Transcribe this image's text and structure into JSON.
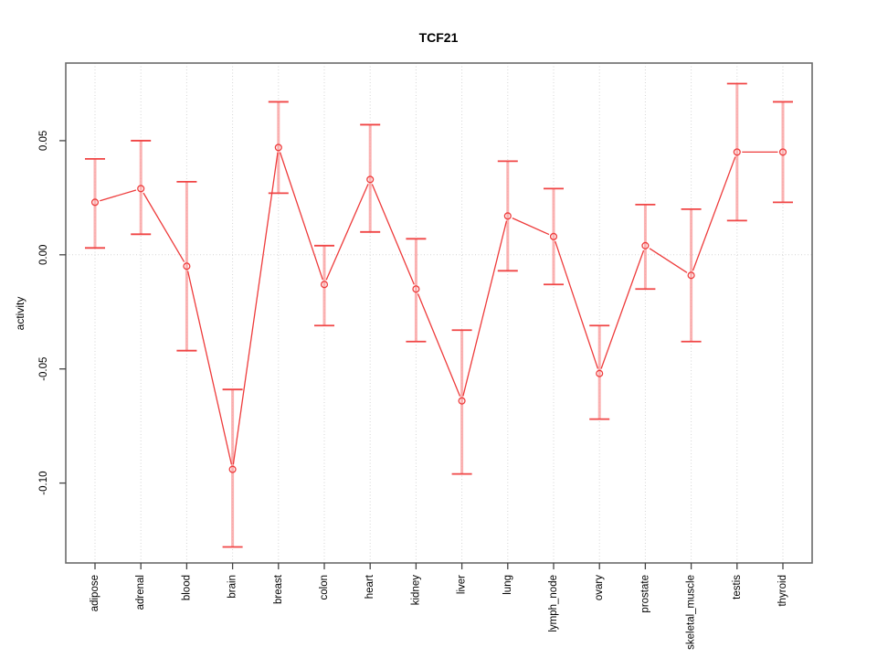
{
  "chart_data": {
    "type": "line",
    "title": "TCF21",
    "xlabel": "",
    "ylabel": "activity",
    "categories": [
      "adipose",
      "adrenal",
      "blood",
      "brain",
      "breast",
      "colon",
      "heart",
      "kidney",
      "liver",
      "lung",
      "lymph_node",
      "ovary",
      "prostate",
      "skeletal_muscle",
      "testis",
      "thyroid"
    ],
    "series": [
      {
        "name": "activity",
        "values": [
          0.023,
          0.029,
          -0.005,
          -0.094,
          0.047,
          -0.013,
          0.033,
          -0.015,
          -0.064,
          0.017,
          0.008,
          -0.052,
          0.004,
          -0.009,
          0.045,
          0.045
        ],
        "error_high": [
          0.042,
          0.05,
          0.032,
          -0.059,
          0.067,
          0.004,
          0.057,
          0.007,
          -0.033,
          0.041,
          0.029,
          -0.031,
          0.022,
          0.02,
          0.075,
          0.067
        ],
        "error_low": [
          0.003,
          0.009,
          -0.042,
          -0.128,
          0.027,
          -0.031,
          0.01,
          -0.038,
          -0.096,
          -0.007,
          -0.013,
          -0.072,
          -0.015,
          -0.038,
          0.015,
          0.023
        ]
      }
    ],
    "yticks": [
      {
        "value": 0.05,
        "label": "0.05"
      },
      {
        "value": 0.0,
        "label": "0.00"
      },
      {
        "value": -0.05,
        "label": "-0.05"
      },
      {
        "value": -0.1,
        "label": "-0.10"
      }
    ],
    "ylim": [
      -0.135,
      0.084
    ],
    "grid": {
      "vertical": "per-category-dotted",
      "horizontal_at": 0,
      "style": "dotted"
    },
    "legend": "none",
    "marker": "open-circle",
    "colors": {
      "line": "#ee3b3b",
      "error_stem": "#fba0a0",
      "error_cap": "#f04545",
      "grid": "#d4d4d4",
      "frame": "#6b6b6b",
      "tick": "#444444",
      "text": "#000000"
    }
  }
}
